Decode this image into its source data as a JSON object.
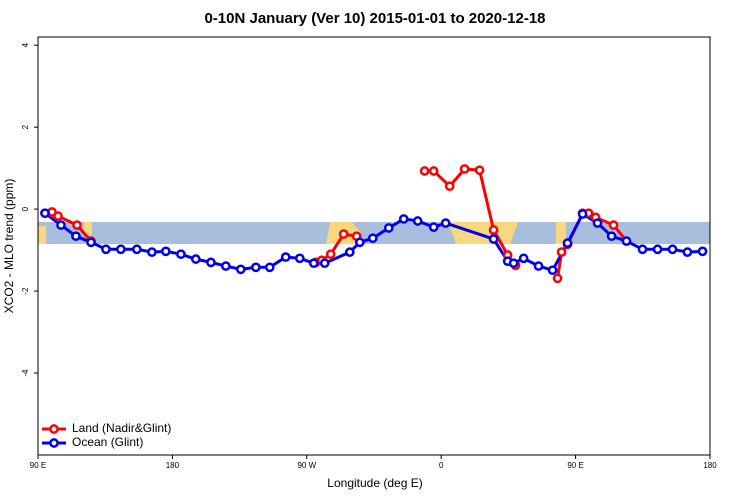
{
  "chart_data": {
    "type": "line",
    "title": "0-10N January (Ver 10)   2015-01-01 to 2020-12-18",
    "x_label": "Longitude (deg E)",
    "y_label": "XCO2 - MLO trend (ppm)",
    "xlim": [
      90,
      540
    ],
    "ylim": [
      -6,
      4.2
    ],
    "xticks": [
      {
        "value": 90,
        "label": "90 E"
      },
      180,
      {
        "value": 270,
        "label": "90 W"
      },
      {
        "value": 360,
        "label": "0"
      },
      {
        "value": 450,
        "label": "90 E"
      },
      {
        "value": 540,
        "label": "180"
      }
    ],
    "yticks": [
      4,
      2,
      0,
      -2,
      -4
    ],
    "legend": "bottom-left",
    "series": [
      {
        "name": "Land (Nadir&Glint)",
        "color": "#ff0000",
        "x": [
          94.7,
          99.4,
          103.4,
          116.1,
          125.5,
          200,
          276.0,
          280.0,
          286.0,
          294.7,
          303.4,
          330,
          348.9,
          355.0,
          365.7,
          375.7,
          385.7,
          395.1,
          404.5,
          409.8,
          430,
          437.9,
          440.6,
          444.6,
          454.7,
          458.7,
          463.4,
          475.4,
          484.1
        ],
        "values": [
          -0.1,
          -0.07,
          -0.17,
          -0.39,
          -0.78,
          null,
          -1.3,
          -1.25,
          -1.1,
          -0.61,
          -0.66,
          null,
          0.93,
          0.93,
          0.56,
          0.98,
          0.95,
          -0.51,
          -1.12,
          -1.37,
          null,
          -1.69,
          -1.05,
          -0.86,
          -0.1,
          -0.1,
          -0.2,
          -0.39,
          -0.78
        ]
      },
      {
        "name": "Ocean (Glint)",
        "color": "#0000ee",
        "x": [
          94.7,
          105.4,
          115.4,
          125.5,
          135.5,
          145.5,
          156.2,
          166.3,
          175.6,
          185.7,
          195.7,
          205.8,
          215.8,
          225.8,
          235.9,
          245.2,
          255.9,
          265.3,
          274.7,
          282.0,
          298.8,
          305.5,
          314.2,
          324.9,
          334.9,
          344.3,
          355.0,
          363.0,
          395.1,
          404.5,
          408.5,
          415.2,
          425.2,
          434.6,
          444.6,
          454.7,
          464.7,
          474.1,
          484.1,
          494.8,
          504.9,
          514.9,
          524.9,
          535.0
        ],
        "values": [
          -0.1,
          -0.39,
          -0.66,
          -0.81,
          -0.98,
          -0.98,
          -0.98,
          -1.05,
          -1.03,
          -1.1,
          -1.22,
          -1.3,
          -1.39,
          -1.47,
          -1.42,
          -1.42,
          -1.17,
          -1.2,
          -1.32,
          -1.32,
          -1.05,
          -0.81,
          -0.71,
          -0.46,
          -0.24,
          -0.29,
          -0.44,
          -0.34,
          -0.73,
          -1.27,
          -1.32,
          -1.2,
          -1.39,
          -1.49,
          -0.83,
          -0.12,
          -0.34,
          -0.66,
          -0.78,
          -0.98,
          -0.98,
          -0.98,
          -1.05,
          -1.03
        ]
      }
    ]
  }
}
